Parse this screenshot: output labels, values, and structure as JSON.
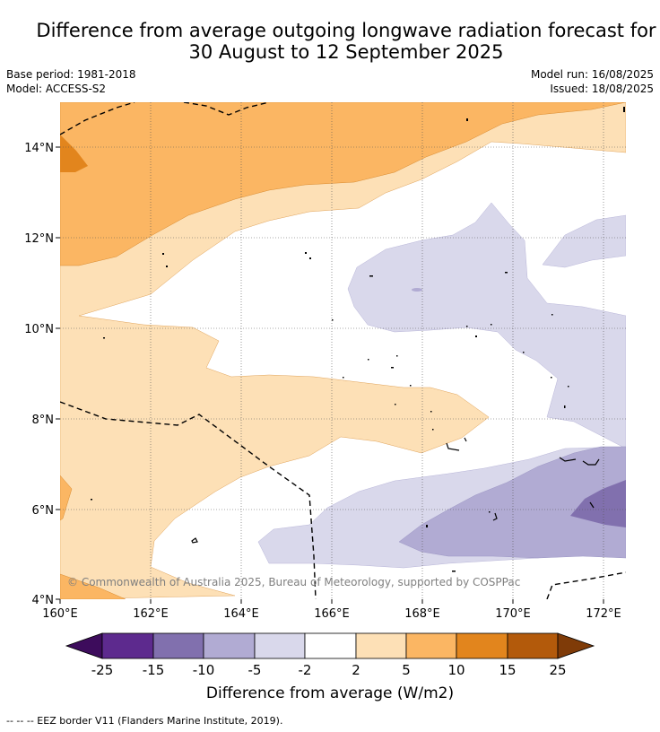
{
  "header": {
    "title_line1": "Difference from average outgoing longwave radiation forecast for",
    "title_line2": "30 August to 12 September 2025",
    "base_period": "Base period: 1981-2018",
    "model": "Model: ACCESS-S2",
    "model_run": "Model run: 16/08/2025",
    "issued": "Issued: 18/08/2025"
  },
  "map": {
    "lon_ticks": [
      "160°E",
      "162°E",
      "164°E",
      "166°E",
      "168°E",
      "170°E",
      "172°E"
    ],
    "lat_ticks": [
      "14°N",
      "12°N",
      "10°N",
      "8°N",
      "6°N",
      "4°N"
    ],
    "copyright": "© Commonwealth of Australia 2025, Bureau of Meteorology, supported by COSPPac"
  },
  "colorbar": {
    "labels": [
      "-25",
      "-15",
      "-10",
      "-5",
      "-2",
      "2",
      "5",
      "10",
      "15",
      "25"
    ],
    "title": "Difference from average (W/m2)",
    "colors": {
      "lt_-25": "#3d0c5c",
      "-25_-15": "#5d2a8e",
      "-15_-10": "#8170ae",
      "-10_-5": "#b1abd3",
      "-5_-2": "#d9d8eb",
      "-2_2": "#ffffff",
      "2_5": "#fde0b6",
      "5_10": "#fbb663",
      "10_15": "#e2851d",
      "15_25": "#b35a0b",
      "gt_25": "#7f3b08"
    }
  },
  "footer": {
    "eez_note": "--  --  -- EEZ border V11 (Flanders Marine Institute, 2019)."
  }
}
